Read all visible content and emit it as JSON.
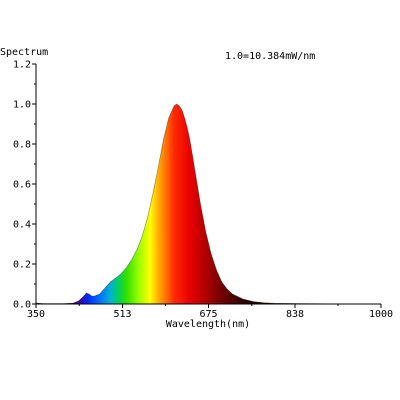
{
  "chart_data": {
    "type": "area",
    "title": "Spectrum",
    "annotation": "1.0=10.384mW/nm",
    "xlabel": "Wavelength(nm)",
    "ylabel": "",
    "xlim": [
      350,
      1000
    ],
    "ylim": [
      0,
      1.2
    ],
    "xticks": [
      "350",
      "513",
      "675",
      "838",
      "1000"
    ],
    "yticks": [
      "0.0",
      "0.2",
      "0.4",
      "0.6",
      "0.8",
      "1.0",
      "1.2"
    ],
    "grid": false,
    "fill": "visible-spectrum gradient (violet to deep red)",
    "series": [
      {
        "x": [
          350,
          360,
          380,
          400,
          420,
          430,
          440,
          445,
          450,
          455,
          460,
          470,
          480,
          490,
          500,
          510,
          520,
          530,
          540,
          550,
          560,
          570,
          580,
          590,
          600,
          610,
          615,
          620,
          625,
          630,
          635,
          640,
          645,
          650,
          660,
          670,
          680,
          690,
          700,
          710,
          720,
          740,
          760,
          780,
          800,
          830,
          860,
          900,
          950,
          1000
        ],
        "y": [
          0.005,
          0.003,
          0.002,
          0.002,
          0.005,
          0.015,
          0.04,
          0.055,
          0.05,
          0.04,
          0.04,
          0.05,
          0.08,
          0.11,
          0.13,
          0.15,
          0.18,
          0.22,
          0.27,
          0.34,
          0.43,
          0.55,
          0.68,
          0.82,
          0.93,
          0.99,
          1.0,
          0.99,
          0.97,
          0.93,
          0.88,
          0.82,
          0.74,
          0.66,
          0.5,
          0.36,
          0.25,
          0.17,
          0.11,
          0.075,
          0.05,
          0.025,
          0.012,
          0.006,
          0.004,
          0.003,
          0.002,
          0.001,
          0.001,
          0.0
        ]
      }
    ]
  }
}
